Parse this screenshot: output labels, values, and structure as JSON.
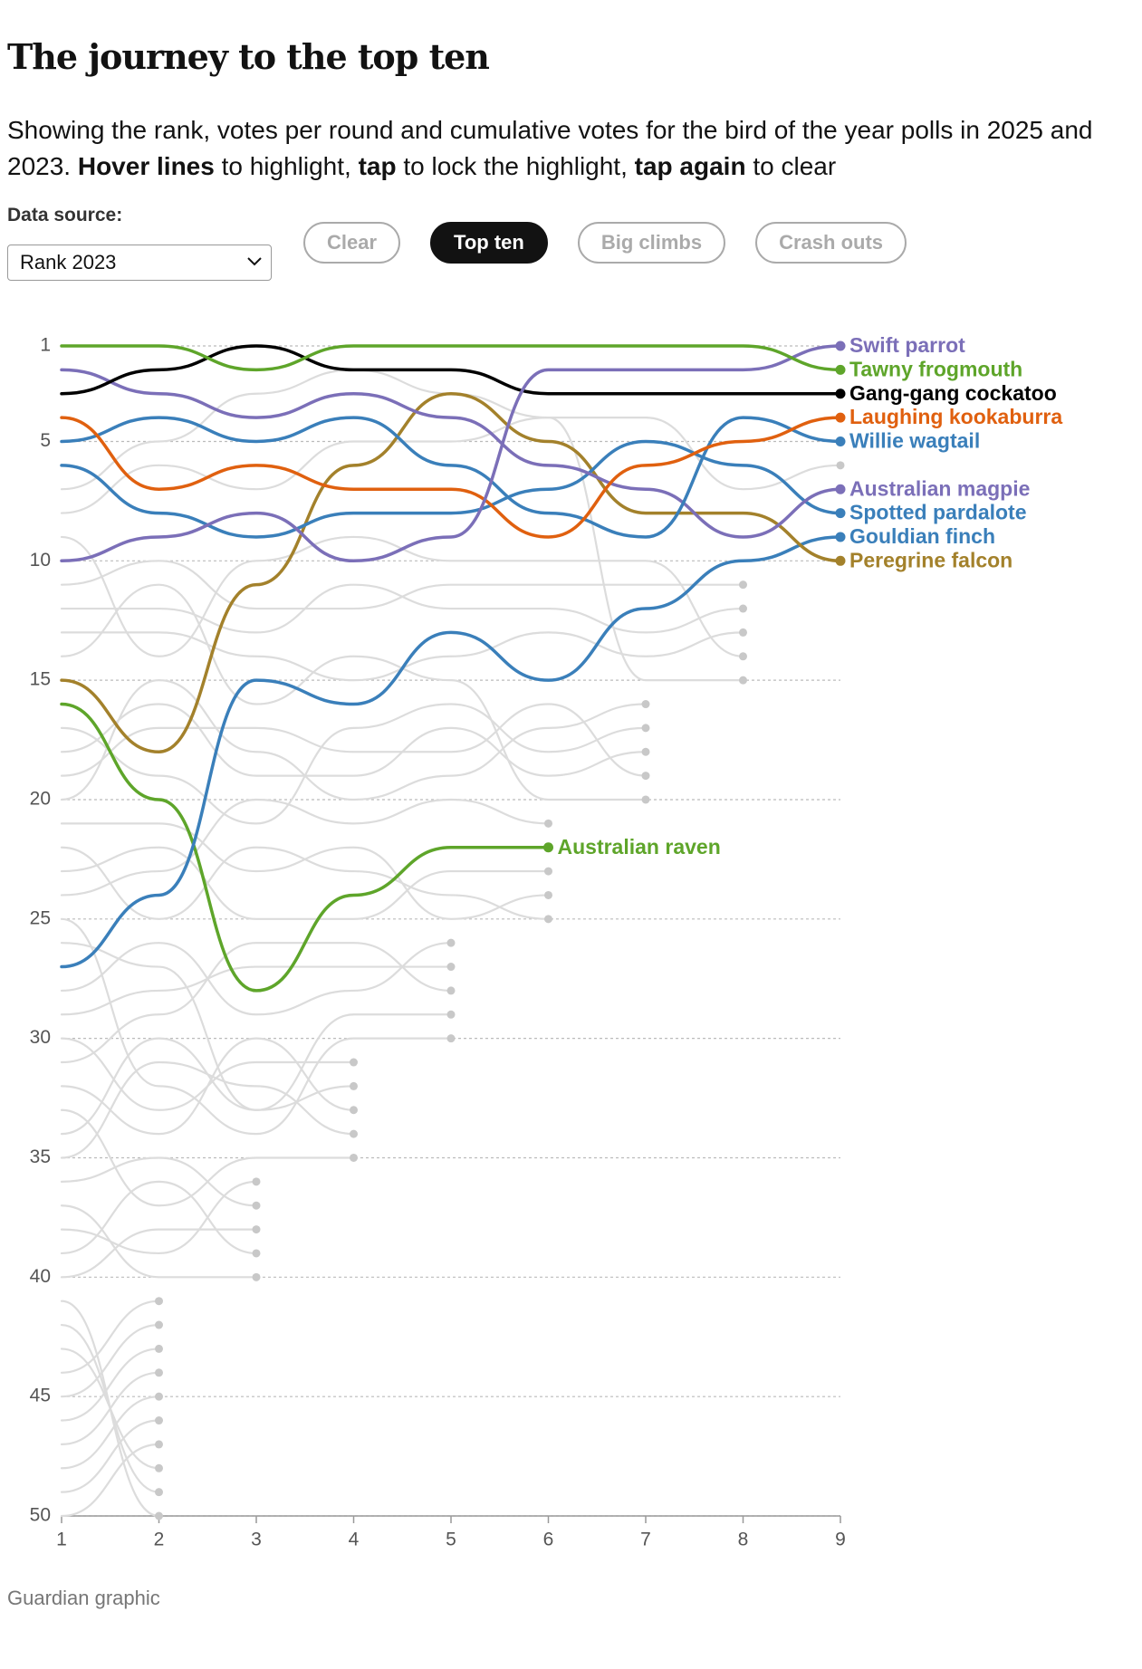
{
  "chart_data": {
    "type": "line",
    "title": "The journey to the top ten",
    "subtitle": [
      {
        "text": "Showing the rank, votes per round and cumulative votes for the bird of the year polls in 2025 and 2023. ",
        "bold": false
      },
      {
        "text": "Hover lines",
        "bold": true
      },
      {
        "text": " to highlight, ",
        "bold": false
      },
      {
        "text": "tap",
        "bold": true
      },
      {
        "text": " to lock the highlight, ",
        "bold": false
      },
      {
        "text": "tap again",
        "bold": true
      },
      {
        "text": " to clear",
        "bold": false
      }
    ],
    "controls": {
      "label": "Data source:",
      "select": "Rank 2023",
      "buttons": [
        "Clear",
        "Top ten",
        "Big climbs",
        "Crash outs"
      ],
      "active": 1
    },
    "footer": "Guardian graphic",
    "x": [
      1,
      2,
      3,
      4,
      5,
      6,
      7,
      8,
      9
    ],
    "xlim": [
      1,
      9
    ],
    "xticks": [
      1,
      2,
      3,
      4,
      5,
      6,
      7,
      8,
      9
    ],
    "ylim": [
      1,
      50
    ],
    "yticks": [
      1,
      5,
      10,
      15,
      20,
      25,
      30,
      35,
      40,
      45,
      50
    ],
    "inverted_y": true,
    "grid": true,
    "series": [
      {
        "color": "#dcdcdc",
        "values": [
          44,
          41,
          null,
          null,
          null,
          null,
          null,
          null,
          null
        ]
      },
      {
        "color": "#dcdcdc",
        "values": [
          45,
          42,
          null,
          null,
          null,
          null,
          null,
          null,
          null
        ]
      },
      {
        "color": "#dcdcdc",
        "values": [
          46,
          43,
          null,
          null,
          null,
          null,
          null,
          null,
          null
        ]
      },
      {
        "color": "#dcdcdc",
        "values": [
          47,
          44,
          null,
          null,
          null,
          null,
          null,
          null,
          null
        ]
      },
      {
        "color": "#dcdcdc",
        "values": [
          48,
          45,
          null,
          null,
          null,
          null,
          null,
          null,
          null
        ]
      },
      {
        "color": "#dcdcdc",
        "values": [
          49,
          46,
          null,
          null,
          null,
          null,
          null,
          null,
          null
        ]
      },
      {
        "color": "#dcdcdc",
        "values": [
          50,
          47,
          null,
          null,
          null,
          null,
          null,
          null,
          null
        ]
      },
      {
        "color": "#dcdcdc",
        "values": [
          43,
          48,
          null,
          null,
          null,
          null,
          null,
          null,
          null
        ]
      },
      {
        "color": "#dcdcdc",
        "values": [
          42,
          49,
          null,
          null,
          null,
          null,
          null,
          null,
          null
        ]
      },
      {
        "color": "#dcdcdc",
        "values": [
          41,
          50,
          null,
          null,
          null,
          null,
          null,
          null,
          null
        ]
      },
      {
        "color": "#dcdcdc",
        "values": [
          38,
          39,
          36,
          null,
          null,
          null,
          null,
          null,
          null
        ]
      },
      {
        "color": "#dcdcdc",
        "values": [
          36,
          35,
          37,
          null,
          null,
          null,
          null,
          null,
          null
        ]
      },
      {
        "color": "#dcdcdc",
        "values": [
          40,
          38,
          38,
          null,
          null,
          null,
          null,
          null,
          null
        ]
      },
      {
        "color": "#dcdcdc",
        "values": [
          39,
          36,
          39,
          null,
          null,
          null,
          null,
          null,
          null
        ]
      },
      {
        "color": "#dcdcdc",
        "values": [
          37,
          40,
          40,
          null,
          null,
          null,
          null,
          null,
          null
        ]
      },
      {
        "color": "#dcdcdc",
        "values": [
          30,
          33,
          31,
          31,
          null,
          null,
          null,
          null,
          null
        ]
      },
      {
        "color": "#dcdcdc",
        "values": [
          34,
          30,
          33,
          32,
          null,
          null,
          null,
          null,
          null
        ]
      },
      {
        "color": "#dcdcdc",
        "values": [
          32,
          34,
          30,
          33,
          null,
          null,
          null,
          null,
          null
        ]
      },
      {
        "color": "#dcdcdc",
        "values": [
          35,
          31,
          32,
          34,
          null,
          null,
          null,
          null,
          null
        ]
      },
      {
        "color": "#dcdcdc",
        "values": [
          33,
          37,
          35,
          35,
          null,
          null,
          null,
          null,
          null
        ]
      },
      {
        "color": "#dcdcdc",
        "values": [
          28,
          26,
          29,
          28,
          26,
          null,
          null,
          null,
          null
        ]
      },
      {
        "color": "#dcdcdc",
        "values": [
          29,
          28,
          27,
          27,
          27,
          null,
          null,
          null,
          null
        ]
      },
      {
        "color": "#dcdcdc",
        "values": [
          31,
          29,
          26,
          26,
          28,
          null,
          null,
          null,
          null
        ]
      },
      {
        "color": "#dcdcdc",
        "values": [
          26,
          27,
          33,
          29,
          29,
          null,
          null,
          null,
          null
        ]
      },
      {
        "color": "#dcdcdc",
        "values": [
          25,
          32,
          34,
          30,
          30,
          null,
          null,
          null,
          null
        ]
      },
      {
        "color": "#dcdcdc",
        "values": [
          24,
          23,
          20,
          21,
          20,
          21,
          null,
          null,
          null
        ]
      },
      {
        "color": "#dcdcdc",
        "values": [
          23,
          22,
          25,
          25,
          23,
          23,
          null,
          null,
          null
        ]
      },
      {
        "color": "#dcdcdc",
        "values": [
          21,
          21,
          23,
          22,
          25,
          24,
          null,
          null,
          null
        ]
      },
      {
        "color": "#dcdcdc",
        "values": [
          22,
          25,
          22,
          23,
          24,
          25,
          null,
          null,
          null
        ]
      },
      {
        "color": "#dcdcdc",
        "values": [
          20,
          15,
          18,
          20,
          19,
          17,
          16,
          null,
          null
        ]
      },
      {
        "color": "#dcdcdc",
        "values": [
          17,
          19,
          21,
          17,
          16,
          18,
          17,
          null,
          null
        ]
      },
      {
        "color": "#dcdcdc",
        "values": [
          18,
          16,
          19,
          19,
          17,
          19,
          18,
          null,
          null
        ]
      },
      {
        "color": "#dcdcdc",
        "values": [
          19,
          17,
          17,
          18,
          18,
          16,
          19,
          null,
          null
        ]
      },
      {
        "color": "#dcdcdc",
        "values": [
          14,
          11,
          16,
          14,
          15,
          20,
          20,
          null,
          null
        ]
      },
      {
        "color": "#dcdcdc",
        "values": [
          11,
          10,
          12,
          12,
          11,
          11,
          11,
          11,
          null
        ]
      },
      {
        "color": "#dcdcdc",
        "values": [
          12,
          12,
          13,
          11,
          12,
          12,
          13,
          12,
          null
        ]
      },
      {
        "color": "#dcdcdc",
        "values": [
          13,
          13,
          14,
          15,
          14,
          13,
          14,
          13,
          null
        ]
      },
      {
        "color": "#dcdcdc",
        "values": [
          9,
          14,
          10,
          9,
          10,
          10,
          10,
          14,
          null
        ]
      },
      {
        "color": "#dcdcdc",
        "values": [
          8,
          6,
          7,
          5,
          5,
          4,
          15,
          15,
          null
        ]
      },
      {
        "color": "#dcdcdc",
        "values": [
          7,
          5,
          3,
          2,
          3,
          4,
          4,
          7,
          6
        ]
      },
      {
        "name": "Australian raven",
        "color": "#5ea52a",
        "values": [
          16,
          20,
          28,
          24,
          22,
          22,
          null,
          null,
          null
        ]
      },
      {
        "name": "Gouldian finch",
        "color": "#3a7fba",
        "values": [
          27,
          24,
          15,
          16,
          13,
          15,
          12,
          10,
          9
        ]
      },
      {
        "name": "Peregrine falcon",
        "color": "#a3812b",
        "values": [
          15,
          18,
          11,
          6,
          3,
          5,
          8,
          8,
          10
        ]
      },
      {
        "name": "Spotted pardalote",
        "color": "#3a7fba",
        "values": [
          6,
          8,
          9,
          8,
          8,
          7,
          5,
          6,
          8
        ]
      },
      {
        "name": "Australian magpie",
        "color": "#7b6fb8",
        "values": [
          2,
          3,
          4,
          3,
          4,
          6,
          7,
          9,
          7
        ]
      },
      {
        "name": "Willie wagtail",
        "color": "#3a7fba",
        "values": [
          5,
          4,
          5,
          4,
          6,
          8,
          9,
          4,
          5
        ]
      },
      {
        "name": "Laughing kookaburra",
        "color": "#e0600f",
        "values": [
          4,
          7,
          6,
          7,
          7,
          9,
          6,
          5,
          4
        ]
      },
      {
        "name": "Gang-gang cockatoo",
        "color": "#000000",
        "values": [
          3,
          2,
          1,
          2,
          2,
          3,
          3,
          3,
          3
        ]
      },
      {
        "name": "Swift parrot",
        "color": "#7b6fb8",
        "values": [
          10,
          9,
          8,
          10,
          9,
          2,
          2,
          2,
          1
        ]
      },
      {
        "name": "Tawny frogmouth",
        "color": "#5ea52a",
        "values": [
          1,
          1,
          2,
          1,
          1,
          1,
          1,
          1,
          2
        ]
      }
    ]
  }
}
